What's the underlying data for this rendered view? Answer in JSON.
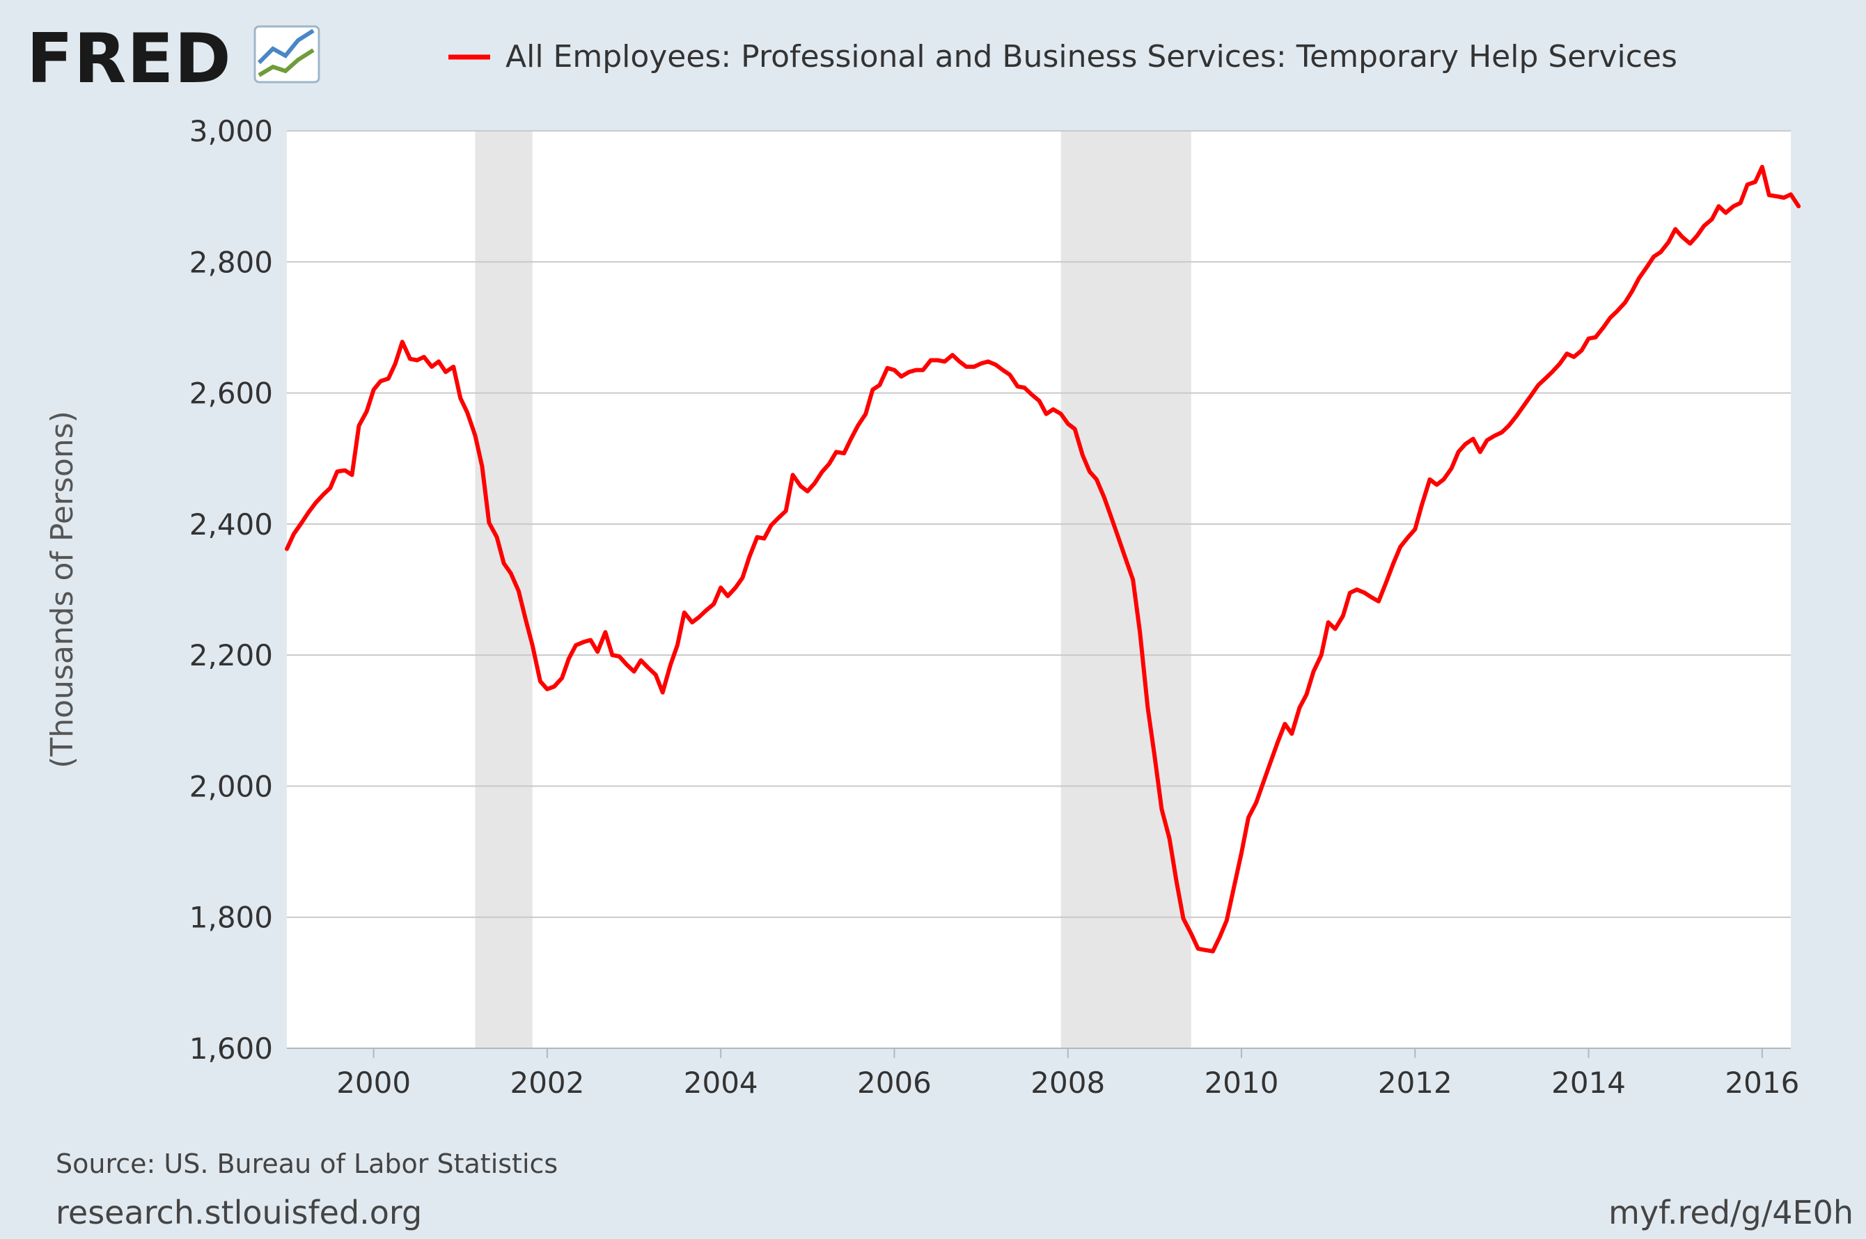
{
  "logo": {
    "text": "FRED"
  },
  "legend": {
    "label": "All Employees: Professional and Business Services: Temporary Help Services",
    "color": "#ff0000"
  },
  "footer": {
    "source": "Source: US. Bureau of Labor Statistics",
    "site": "research.stlouisfed.org",
    "short_url": "myf.red/g/4E0h"
  },
  "colors": {
    "background": "#e1e9f0",
    "plot_background": "#ffffff",
    "grid": "#c9c9c9",
    "recession": "#e6e6e6",
    "line": "#ff0000"
  },
  "chart_data": {
    "type": "line",
    "ylabel": "(Thousands of Persons)",
    "xlim": [
      1999.0,
      2016.33
    ],
    "ylim": [
      1600,
      3000
    ],
    "y_ticks": [
      1600,
      1800,
      2000,
      2200,
      2400,
      2600,
      2800,
      3000
    ],
    "y_tick_labels": [
      "1,600",
      "1,800",
      "2,000",
      "2,200",
      "2,400",
      "2,600",
      "2,800",
      "3,000"
    ],
    "x_ticks": [
      2000,
      2002,
      2004,
      2006,
      2008,
      2010,
      2012,
      2014,
      2016
    ],
    "x_tick_labels": [
      "2000",
      "2002",
      "2004",
      "2006",
      "2008",
      "2010",
      "2012",
      "2014",
      "2016"
    ],
    "grid": true,
    "legend_position": "top",
    "recessions": [
      [
        2001.17,
        2001.83
      ],
      [
        2007.92,
        2009.42
      ]
    ],
    "series": [
      {
        "name": "All Employees: Professional and Business Services: Temporary Help Services",
        "color": "#ff0000",
        "points": [
          [
            1999.0,
            2362
          ],
          [
            1999.08,
            2385
          ],
          [
            1999.17,
            2402
          ],
          [
            1999.25,
            2418
          ],
          [
            1999.33,
            2432
          ],
          [
            1999.42,
            2445
          ],
          [
            1999.5,
            2455
          ],
          [
            1999.58,
            2480
          ],
          [
            1999.67,
            2482
          ],
          [
            1999.75,
            2475
          ],
          [
            1999.83,
            2550
          ],
          [
            1999.92,
            2572
          ],
          [
            2000.0,
            2605
          ],
          [
            2000.08,
            2618
          ],
          [
            2000.17,
            2622
          ],
          [
            2000.25,
            2645
          ],
          [
            2000.33,
            2678
          ],
          [
            2000.42,
            2652
          ],
          [
            2000.5,
            2650
          ],
          [
            2000.58,
            2655
          ],
          [
            2000.67,
            2640
          ],
          [
            2000.75,
            2648
          ],
          [
            2000.83,
            2632
          ],
          [
            2000.92,
            2640
          ],
          [
            2001.0,
            2592
          ],
          [
            2001.08,
            2570
          ],
          [
            2001.17,
            2535
          ],
          [
            2001.25,
            2488
          ],
          [
            2001.33,
            2402
          ],
          [
            2001.42,
            2380
          ],
          [
            2001.5,
            2340
          ],
          [
            2001.58,
            2325
          ],
          [
            2001.67,
            2298
          ],
          [
            2001.75,
            2255
          ],
          [
            2001.83,
            2215
          ],
          [
            2001.92,
            2160
          ],
          [
            2002.0,
            2148
          ],
          [
            2002.08,
            2152
          ],
          [
            2002.17,
            2165
          ],
          [
            2002.25,
            2195
          ],
          [
            2002.33,
            2215
          ],
          [
            2002.42,
            2220
          ],
          [
            2002.5,
            2223
          ],
          [
            2002.58,
            2205
          ],
          [
            2002.67,
            2235
          ],
          [
            2002.75,
            2200
          ],
          [
            2002.83,
            2198
          ],
          [
            2002.92,
            2185
          ],
          [
            2003.0,
            2175
          ],
          [
            2003.08,
            2192
          ],
          [
            2003.17,
            2180
          ],
          [
            2003.25,
            2170
          ],
          [
            2003.33,
            2143
          ],
          [
            2003.42,
            2185
          ],
          [
            2003.5,
            2215
          ],
          [
            2003.58,
            2265
          ],
          [
            2003.67,
            2250
          ],
          [
            2003.75,
            2258
          ],
          [
            2003.83,
            2268
          ],
          [
            2003.92,
            2278
          ],
          [
            2004.0,
            2303
          ],
          [
            2004.08,
            2290
          ],
          [
            2004.17,
            2303
          ],
          [
            2004.25,
            2318
          ],
          [
            2004.33,
            2350
          ],
          [
            2004.42,
            2380
          ],
          [
            2004.5,
            2378
          ],
          [
            2004.58,
            2398
          ],
          [
            2004.67,
            2410
          ],
          [
            2004.75,
            2420
          ],
          [
            2004.83,
            2475
          ],
          [
            2004.92,
            2458
          ],
          [
            2005.0,
            2450
          ],
          [
            2005.08,
            2462
          ],
          [
            2005.17,
            2480
          ],
          [
            2005.25,
            2492
          ],
          [
            2005.33,
            2510
          ],
          [
            2005.42,
            2508
          ],
          [
            2005.5,
            2530
          ],
          [
            2005.58,
            2550
          ],
          [
            2005.67,
            2568
          ],
          [
            2005.75,
            2605
          ],
          [
            2005.83,
            2612
          ],
          [
            2005.92,
            2638
          ],
          [
            2006.0,
            2635
          ],
          [
            2006.08,
            2625
          ],
          [
            2006.17,
            2632
          ],
          [
            2006.25,
            2635
          ],
          [
            2006.33,
            2635
          ],
          [
            2006.42,
            2650
          ],
          [
            2006.5,
            2650
          ],
          [
            2006.58,
            2648
          ],
          [
            2006.67,
            2658
          ],
          [
            2006.75,
            2648
          ],
          [
            2006.83,
            2640
          ],
          [
            2006.92,
            2640
          ],
          [
            2007.0,
            2645
          ],
          [
            2007.08,
            2648
          ],
          [
            2007.17,
            2643
          ],
          [
            2007.25,
            2635
          ],
          [
            2007.33,
            2628
          ],
          [
            2007.42,
            2610
          ],
          [
            2007.5,
            2608
          ],
          [
            2007.58,
            2598
          ],
          [
            2007.67,
            2588
          ],
          [
            2007.75,
            2568
          ],
          [
            2007.83,
            2575
          ],
          [
            2007.92,
            2568
          ],
          [
            2008.0,
            2553
          ],
          [
            2008.08,
            2545
          ],
          [
            2008.17,
            2505
          ],
          [
            2008.25,
            2480
          ],
          [
            2008.33,
            2468
          ],
          [
            2008.42,
            2440
          ],
          [
            2008.5,
            2410
          ],
          [
            2008.58,
            2380
          ],
          [
            2008.67,
            2345
          ],
          [
            2008.75,
            2315
          ],
          [
            2008.83,
            2235
          ],
          [
            2008.92,
            2120
          ],
          [
            2009.0,
            2045
          ],
          [
            2009.08,
            1965
          ],
          [
            2009.17,
            1920
          ],
          [
            2009.25,
            1855
          ],
          [
            2009.33,
            1798
          ],
          [
            2009.42,
            1775
          ],
          [
            2009.5,
            1752
          ],
          [
            2009.58,
            1750
          ],
          [
            2009.67,
            1748
          ],
          [
            2009.75,
            1770
          ],
          [
            2009.83,
            1795
          ],
          [
            2009.92,
            1850
          ],
          [
            2010.0,
            1898
          ],
          [
            2010.08,
            1952
          ],
          [
            2010.17,
            1975
          ],
          [
            2010.25,
            2005
          ],
          [
            2010.33,
            2035
          ],
          [
            2010.42,
            2068
          ],
          [
            2010.5,
            2095
          ],
          [
            2010.58,
            2080
          ],
          [
            2010.67,
            2120
          ],
          [
            2010.75,
            2140
          ],
          [
            2010.83,
            2175
          ],
          [
            2010.92,
            2200
          ],
          [
            2011.0,
            2250
          ],
          [
            2011.08,
            2240
          ],
          [
            2011.17,
            2260
          ],
          [
            2011.25,
            2295
          ],
          [
            2011.33,
            2300
          ],
          [
            2011.42,
            2295
          ],
          [
            2011.5,
            2288
          ],
          [
            2011.58,
            2282
          ],
          [
            2011.67,
            2312
          ],
          [
            2011.75,
            2340
          ],
          [
            2011.83,
            2365
          ],
          [
            2011.92,
            2380
          ],
          [
            2012.0,
            2392
          ],
          [
            2012.08,
            2430
          ],
          [
            2012.17,
            2468
          ],
          [
            2012.25,
            2460
          ],
          [
            2012.33,
            2468
          ],
          [
            2012.42,
            2485
          ],
          [
            2012.5,
            2510
          ],
          [
            2012.58,
            2522
          ],
          [
            2012.67,
            2530
          ],
          [
            2012.75,
            2510
          ],
          [
            2012.83,
            2528
          ],
          [
            2012.92,
            2535
          ],
          [
            2013.0,
            2540
          ],
          [
            2013.08,
            2550
          ],
          [
            2013.17,
            2565
          ],
          [
            2013.25,
            2580
          ],
          [
            2013.33,
            2595
          ],
          [
            2013.42,
            2612
          ],
          [
            2013.5,
            2622
          ],
          [
            2013.58,
            2632
          ],
          [
            2013.67,
            2645
          ],
          [
            2013.75,
            2660
          ],
          [
            2013.83,
            2655
          ],
          [
            2013.92,
            2665
          ],
          [
            2014.0,
            2683
          ],
          [
            2014.08,
            2685
          ],
          [
            2014.17,
            2700
          ],
          [
            2014.25,
            2715
          ],
          [
            2014.33,
            2725
          ],
          [
            2014.42,
            2738
          ],
          [
            2014.5,
            2755
          ],
          [
            2014.58,
            2775
          ],
          [
            2014.67,
            2792
          ],
          [
            2014.75,
            2808
          ],
          [
            2014.83,
            2815
          ],
          [
            2014.92,
            2830
          ],
          [
            2015.0,
            2850
          ],
          [
            2015.08,
            2838
          ],
          [
            2015.17,
            2828
          ],
          [
            2015.25,
            2840
          ],
          [
            2015.33,
            2855
          ],
          [
            2015.42,
            2865
          ],
          [
            2015.5,
            2885
          ],
          [
            2015.58,
            2875
          ],
          [
            2015.67,
            2885
          ],
          [
            2015.75,
            2890
          ],
          [
            2015.83,
            2918
          ],
          [
            2015.92,
            2922
          ],
          [
            2016.0,
            2945
          ],
          [
            2016.08,
            2902
          ],
          [
            2016.17,
            2900
          ],
          [
            2016.25,
            2898
          ],
          [
            2016.33,
            2903
          ],
          [
            2016.42,
            2885
          ]
        ]
      }
    ]
  }
}
